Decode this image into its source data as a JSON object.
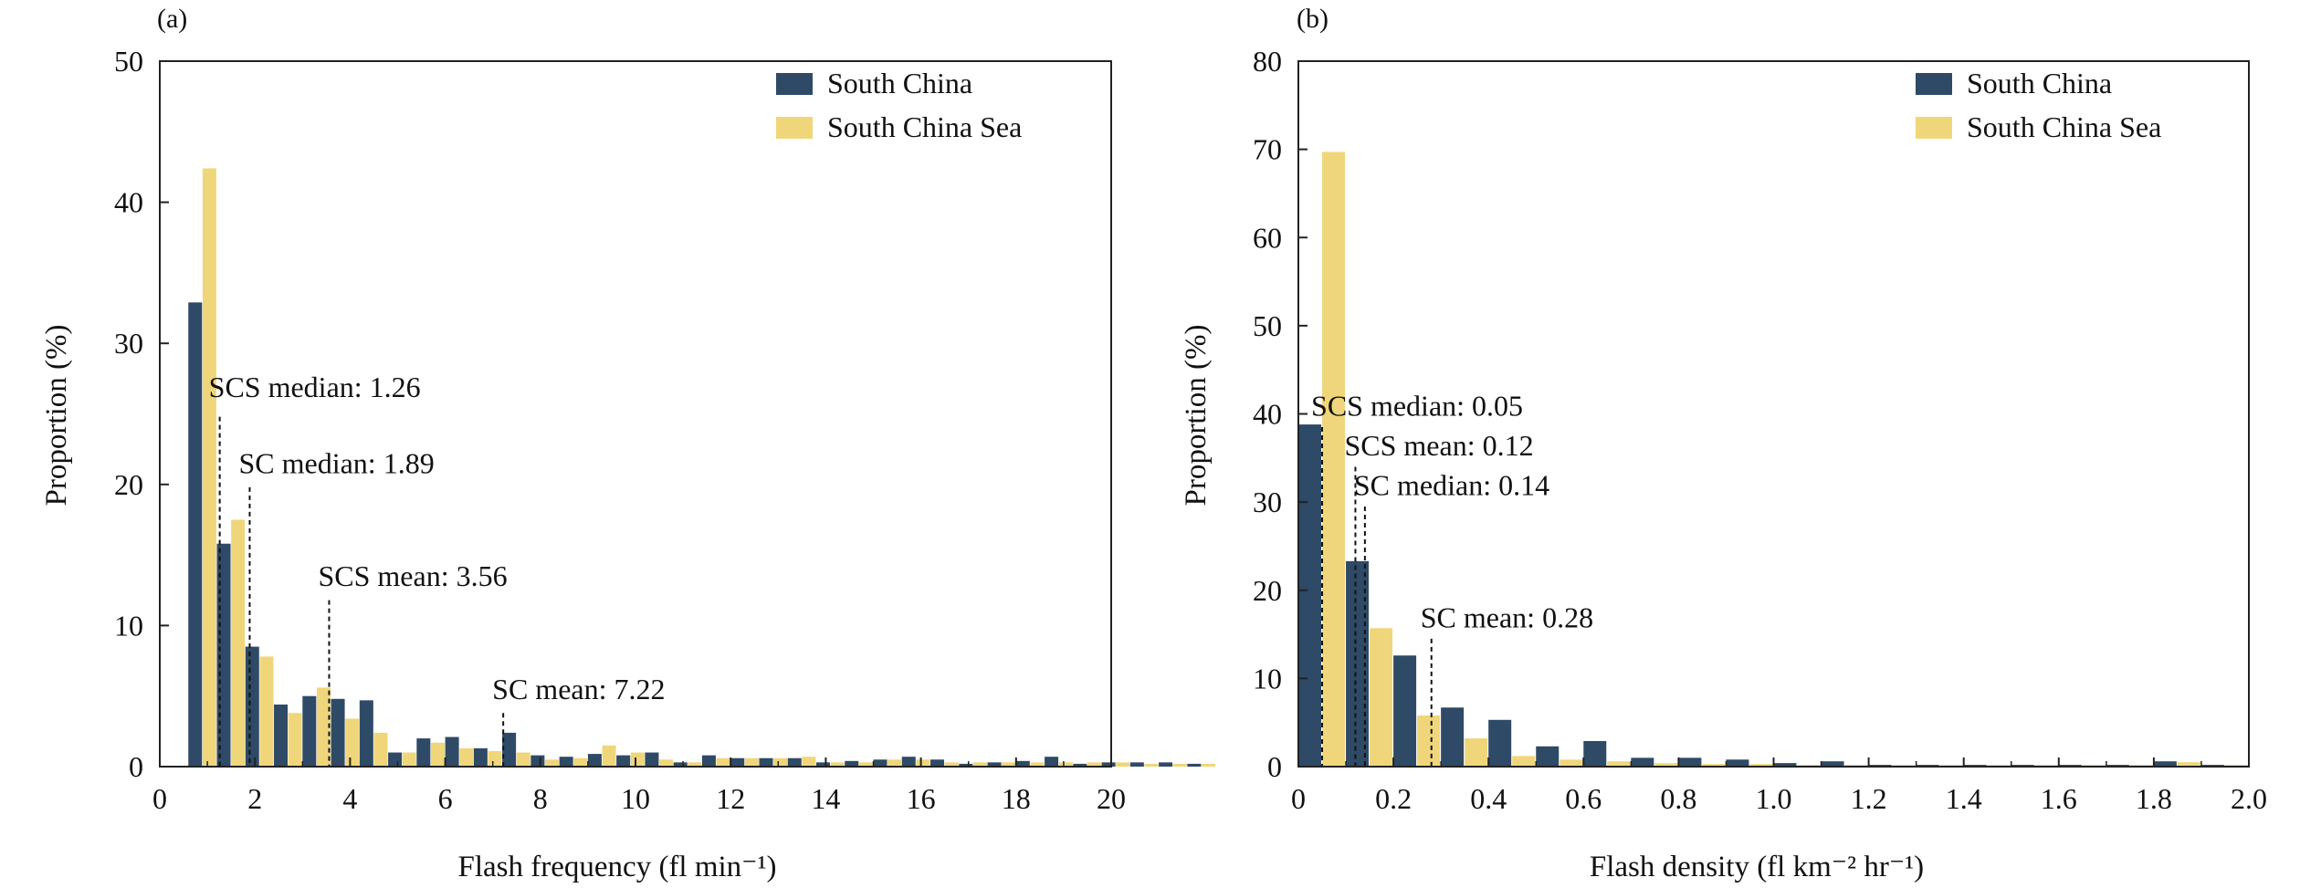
{
  "colors": {
    "south_china": "#2e4a66",
    "south_china_sea": "#f0d67a",
    "axis": "#222222"
  },
  "chart_data": [
    {
      "panel_label": "(a)",
      "type": "bar",
      "xlabel": "Flash frequency (fl min⁻¹)",
      "ylabel": "Proportion (%)",
      "xlim": [
        0,
        20
      ],
      "ylim": [
        0,
        50
      ],
      "xticks": [
        0,
        2,
        4,
        6,
        8,
        10,
        12,
        14,
        16,
        18,
        20
      ],
      "yticks": [
        0,
        10,
        20,
        30,
        40,
        50
      ],
      "bin_width": 0.6,
      "bin_start": 0.6,
      "legend": "top-right",
      "series": [
        {
          "name": "South China",
          "color": "#2e4a66",
          "values": [
            32.9,
            15.8,
            8.5,
            4.4,
            5.0,
            4.8,
            4.7,
            1.0,
            2.0,
            2.1,
            1.3,
            2.4,
            0.8,
            0.7,
            0.9,
            0.8,
            1.0,
            0.3,
            0.8,
            0.6,
            0.6,
            0.6,
            0.3,
            0.4,
            0.5,
            0.7,
            0.5,
            0.2,
            0.3,
            0.4,
            0.7,
            0.2,
            0.3,
            0.3,
            0.3,
            0.2
          ]
        },
        {
          "name": "South China Sea",
          "color": "#f0d67a",
          "values": [
            42.4,
            17.5,
            7.8,
            3.8,
            5.6,
            3.4,
            2.4,
            1.0,
            1.7,
            1.3,
            1.1,
            1.0,
            0.5,
            0.6,
            1.5,
            1.0,
            0.5,
            0.3,
            0.6,
            0.6,
            0.6,
            0.7,
            0.3,
            0.3,
            0.5,
            0.5,
            0.3,
            0.3,
            0.3,
            0.3,
            0.3,
            0.3,
            0.3,
            0.2,
            0.2,
            0.2
          ]
        }
      ],
      "annotations": [
        {
          "text": "SCS median: 1.26",
          "x": 1.26,
          "y_top": 24.8,
          "label_y": 26.2
        },
        {
          "text": "SC median: 1.89",
          "x": 1.89,
          "y_top": 19.8,
          "label_y": 20.8
        },
        {
          "text": "SCS mean: 3.56",
          "x": 3.56,
          "y_top": 11.8,
          "label_y": 12.8
        },
        {
          "text": "SC mean: 7.22",
          "x": 7.22,
          "y_top": 3.8,
          "label_y": 4.8
        }
      ]
    },
    {
      "panel_label": "(b)",
      "type": "bar",
      "xlabel": "Flash density (fl km⁻² hr⁻¹)",
      "ylabel": "Proportion (%)",
      "xlim": [
        0,
        2.0
      ],
      "ylim": [
        0,
        80
      ],
      "xticks": [
        0,
        0.2,
        0.4,
        0.6,
        0.8,
        1.0,
        1.2,
        1.4,
        1.6,
        1.8,
        2.0
      ],
      "xtick_labels": [
        "0",
        "0.2",
        "0.4",
        "0.6",
        "0.8",
        "1.0",
        "1.2",
        "1.4",
        "1.6",
        "1.8",
        "2.0"
      ],
      "yticks": [
        0,
        10,
        20,
        30,
        40,
        50,
        60,
        70,
        80
      ],
      "bin_width": 0.1,
      "bin_start": 0.0,
      "legend": "top-right",
      "series": [
        {
          "name": "South China",
          "color": "#2e4a66",
          "values": [
            38.8,
            23.3,
            12.6,
            6.7,
            5.3,
            2.3,
            2.9,
            1.0,
            1.0,
            0.8,
            0.4,
            0.6,
            0.2,
            0.2,
            0.2,
            0.2,
            0.2,
            0.2,
            0.6,
            0.2
          ]
        },
        {
          "name": "South China Sea",
          "color": "#f0d67a",
          "values": [
            69.7,
            15.7,
            5.8,
            3.2,
            1.2,
            0.8,
            0.6,
            0.4,
            0.3,
            0.3,
            0.2,
            0.2,
            0.2,
            0.2,
            0.2,
            0.2,
            0.2,
            0.2,
            0.5,
            0.2
          ]
        }
      ],
      "annotations": [
        {
          "text": "SCS median: 0.05",
          "x": 0.05,
          "y_top": 38.5,
          "label_y": 39.8
        },
        {
          "text": "SCS mean: 0.12",
          "x": 0.12,
          "y_top": 34.0,
          "label_y": 35.3
        },
        {
          "text": "SC median: 0.14",
          "x": 0.14,
          "y_top": 29.5,
          "label_y": 30.8
        },
        {
          "text": "SC mean: 0.28",
          "x": 0.28,
          "y_top": 14.5,
          "label_y": 15.8
        }
      ]
    }
  ]
}
